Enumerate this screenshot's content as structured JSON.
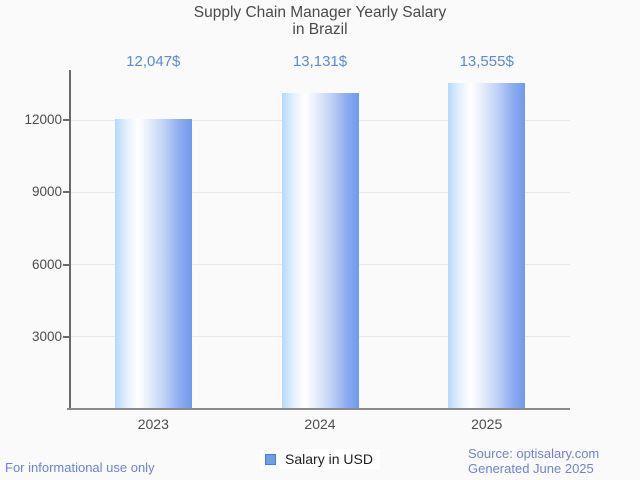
{
  "title": {
    "line1": "Supply Chain Manager Yearly Salary",
    "line2": "in Brazil"
  },
  "chart_data": {
    "type": "bar",
    "title": "Supply Chain Manager Yearly Salary in Brazil",
    "categories": [
      "2023",
      "2024",
      "2025"
    ],
    "values": [
      12047,
      13131,
      13555
    ],
    "value_labels": [
      "12,047$",
      "13,131$",
      "13,555$"
    ],
    "xlabel": "",
    "ylabel": "",
    "y_ticks": [
      3000,
      6000,
      9000,
      12000
    ],
    "ylim": [
      0,
      14075
    ],
    "grid": true,
    "legend_position": "bottom-center",
    "series_name": "Salary in USD"
  },
  "legend": {
    "label": "Salary in USD"
  },
  "footer": {
    "left": "For informational use only",
    "source": "Source: optisalary.com",
    "generated": "Generated June 2025"
  },
  "colors": {
    "background": "#fafafa",
    "title_text": "#4a4a4a",
    "axis_text": "#4d4d4d",
    "value_label_text": "#5d89d6",
    "footer_text": "#6e82d6",
    "grid_line": "#e9e9e9",
    "axis_line": "#6a6a6a",
    "bar_gradient_left": "#b5d9fa",
    "bar_gradient_mid": "#ffffff",
    "bar_gradient_right": "#6e9aec",
    "legend_swatch_fill": "#6d9ce8",
    "legend_swatch_border": "#4a7dd1"
  }
}
